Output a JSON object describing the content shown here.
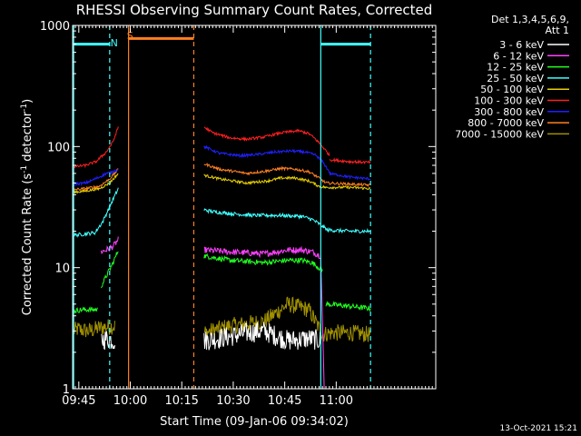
{
  "chart_data": {
    "type": "line",
    "title": "RHESSI Observing Summary Count Rates, Corrected",
    "xlabel": "Start Time (09-Jan-06 09:34:02)",
    "ylabel_parts": [
      "Corrected Count Rate (s",
      "-1",
      " detector",
      "-1",
      ")"
    ],
    "ylog": true,
    "ylim": [
      1,
      1000
    ],
    "xlim_minutes": [
      9.2,
      115.0
    ],
    "yticks": [
      {
        "value": 1,
        "label": "1"
      },
      {
        "value": 10,
        "label": "10"
      },
      {
        "value": 100,
        "label": "100"
      },
      {
        "value": 1000,
        "label": "1000"
      }
    ],
    "xticks": [
      {
        "value": 11,
        "label": "09:45"
      },
      {
        "value": 26,
        "label": "10:00"
      },
      {
        "value": 41,
        "label": "10:15"
      },
      {
        "value": 56,
        "label": "10:30"
      },
      {
        "value": 71,
        "label": "10:45"
      },
      {
        "value": 86,
        "label": "11:00"
      }
    ],
    "legend": {
      "position": "right",
      "header": [
        "Det 1,3,4,5,6,9,",
        "Att 1"
      ],
      "entries": [
        {
          "label": "3 - 6 keV",
          "color": "#ffffff"
        },
        {
          "label": "6 - 12 keV",
          "color": "#ff40ff"
        },
        {
          "label": "12 - 25 keV",
          "color": "#20ff20"
        },
        {
          "label": "25 - 50 keV",
          "color": "#40ffff"
        },
        {
          "label": "50 - 100 keV",
          "color": "#e8d000"
        },
        {
          "label": "100 - 300 keV",
          "color": "#ff2020"
        },
        {
          "label": "300 - 800 keV",
          "color": "#2020ff"
        },
        {
          "label": "800 - 7000 keV",
          "color": "#ff8020"
        },
        {
          "label": "7000 - 15000 keV",
          "color": "#a09000"
        }
      ]
    },
    "series": [
      {
        "color": "#a09000",
        "noise": 0.16,
        "floor": 2.0,
        "segments": [
          {
            "x": [
              9.5,
              10.5,
              14,
              17.5,
              21.5
            ],
            "y": [
              3.0,
              3.1,
              3.0,
              3.2,
              3.3
            ]
          },
          {
            "x": [
              47.5,
              55,
              65,
              72,
              78,
              81.5
            ],
            "y": [
              2.9,
              3.3,
              3.6,
              5.0,
              4.5,
              3.0
            ]
          },
          {
            "x": [
              81.5,
              85,
              90,
              96
            ],
            "y": [
              2.8,
              2.9,
              2.9,
              2.8
            ]
          }
        ]
      },
      {
        "color": "#ffffff",
        "noise": 0.2,
        "floor": 1.0,
        "segments": [
          {
            "x": [
              17.5,
              19,
              21.5
            ],
            "y": [
              2.5,
              2.6,
              2.5
            ]
          },
          {
            "x": [
              47.5,
              55,
              60,
              65,
              72,
              78,
              81.5
            ],
            "y": [
              2.5,
              2.7,
              2.9,
              3.0,
              2.5,
              2.6,
              2.5
            ]
          }
        ]
      },
      {
        "color": "#ff40ff",
        "noise": 0.06,
        "segments": [
          {
            "x": [
              17.5,
              19,
              21,
              22.5
            ],
            "y": [
              13.5,
              14,
              15,
              17
            ]
          },
          {
            "x": [
              47.5,
              55,
              65,
              72,
              76,
              79,
              81.5
            ],
            "y": [
              14,
              13.5,
              13,
              14,
              14,
              13.5,
              12.5
            ]
          },
          {
            "x": [
              81.5,
              82.5
            ],
            "y": [
              12.5,
              1.0
            ]
          }
        ]
      },
      {
        "color": "#20ff20",
        "noise": 0.05,
        "segments": [
          {
            "x": [
              9.5,
              12,
              16.5
            ],
            "y": [
              4.4,
              4.5,
              4.5
            ]
          },
          {
            "x": [
              17.5,
              19,
              21,
              22.5
            ],
            "y": [
              7.0,
              8.5,
              11,
              14
            ]
          },
          {
            "x": [
              47.5,
              55,
              65,
              72,
              76,
              79,
              82
            ],
            "y": [
              12.5,
              11.5,
              11,
              11.5,
              11.5,
              11,
              9.5
            ]
          },
          {
            "x": [
              83,
              90,
              96
            ],
            "y": [
              5.0,
              4.8,
              4.6
            ]
          }
        ]
      },
      {
        "color": "#40ffff",
        "noise": 0.035,
        "segments": [
          {
            "x": [
              9.5,
              13,
              16
            ],
            "y": [
              18.5,
              19,
              19.5
            ]
          },
          {
            "x": [
              16,
              18,
              20,
              22.5
            ],
            "y": [
              20,
              24,
              32,
              45
            ]
          },
          {
            "x": [
              47.5,
              50,
              55,
              62,
              70,
              76,
              79,
              81,
              83
            ],
            "y": [
              30,
              29,
              28,
              27,
              27,
              26.5,
              25,
              23,
              21
            ]
          },
          {
            "x": [
              83,
              90,
              96
            ],
            "y": [
              20.5,
              20,
              20
            ]
          }
        ]
      },
      {
        "color": "#e8d000",
        "noise": 0.025,
        "segments": [
          {
            "x": [
              9.5,
              13,
              17,
              20,
              22.5
            ],
            "y": [
              42,
              43,
              45,
              50,
              60
            ]
          },
          {
            "x": [
              47.5,
              52,
              60,
              66,
              70,
              74,
              78,
              81,
              83
            ],
            "y": [
              58,
              54,
              50,
              52,
              55,
              55,
              52,
              47,
              46
            ]
          },
          {
            "x": [
              83,
              90,
              96
            ],
            "y": [
              46,
              46,
              45
            ]
          }
        ]
      },
      {
        "color": "#ff8020",
        "noise": 0.025,
        "segments": [
          {
            "x": [
              9.5,
              13,
              17,
              20,
              22.5
            ],
            "y": [
              44,
              45,
              47,
              54,
              65
            ]
          },
          {
            "x": [
              47.5,
              52,
              60,
              66,
              70,
              74,
              78,
              81,
              83
            ],
            "y": [
              72,
              65,
              60,
              63,
              66,
              65,
              62,
              55,
              50
            ]
          },
          {
            "x": [
              83,
              90,
              96
            ],
            "y": [
              50,
              49,
              48
            ]
          }
        ]
      },
      {
        "color": "#2020ff",
        "noise": 0.025,
        "segments": [
          {
            "x": [
              9.5,
              13,
              17,
              19,
              21,
              22.5
            ],
            "y": [
              49,
              50,
              56,
              60,
              62,
              65
            ]
          },
          {
            "x": [
              47.5,
              52,
              58,
              63,
              68,
              73,
              77,
              80,
              82,
              84
            ],
            "y": [
              100,
              88,
              84,
              86,
              90,
              92,
              90,
              85,
              75,
              62
            ]
          },
          {
            "x": [
              84,
              90,
              96
            ],
            "y": [
              60,
              56,
              54
            ]
          }
        ]
      },
      {
        "color": "#ff2020",
        "noise": 0.025,
        "segments": [
          {
            "x": [
              9.5,
              13,
              16,
              19,
              21,
              22.5
            ],
            "y": [
              68,
              70,
              75,
              90,
              110,
              145
            ]
          },
          {
            "x": [
              47.5,
              50,
              55,
              60,
              65,
              70,
              75,
              78,
              80,
              82,
              84
            ],
            "y": [
              145,
              130,
              118,
              115,
              120,
              130,
              135,
              128,
              115,
              100,
              85
            ]
          },
          {
            "x": [
              84,
              90,
              96
            ],
            "y": [
              78,
              75,
              74
            ]
          }
        ]
      }
    ],
    "markers": {
      "cyan_bar_left": {
        "x": [
          9.5,
          20.0
        ],
        "y": 700,
        "color": "#40ffff"
      },
      "cyan_bar_right": {
        "x": [
          81.5,
          96.0
        ],
        "y": 700,
        "color": "#40ffff"
      },
      "orange_bar": {
        "x": [
          25.5,
          44.5
        ],
        "y": 780,
        "color": "#ff8020"
      },
      "N_label": {
        "text": "N",
        "x": 20.2,
        "y": 720,
        "color": "#40ffff"
      },
      "S_label": {
        "text": "S",
        "x": 25.0,
        "y": 830,
        "color": "#ff8020"
      },
      "vlines": [
        {
          "x": 9.5,
          "color": "#40ffff",
          "dash": false
        },
        {
          "x": 20.0,
          "color": "#40ffff",
          "dash": true
        },
        {
          "x": 25.5,
          "color": "#ff8020",
          "dash": false
        },
        {
          "x": 44.5,
          "color": "#ff8020",
          "dash": true
        },
        {
          "x": 81.5,
          "color": "#40ffff",
          "dash": false
        },
        {
          "x": 96.0,
          "color": "#40ffff",
          "dash": true
        }
      ]
    }
  },
  "footer": {
    "timestamp": "13-Oct-2021 15:21"
  }
}
